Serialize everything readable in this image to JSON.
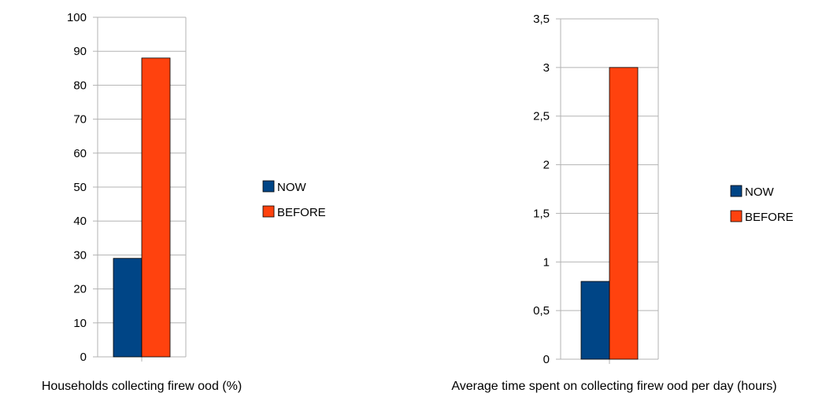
{
  "colors": {
    "now": "#004586",
    "before": "#ff420e",
    "grid": "#b3b3b3",
    "axis": "#b3b3b3"
  },
  "chart_data": [
    {
      "type": "bar",
      "categories": [
        ""
      ],
      "series": [
        {
          "name": "NOW",
          "values": [
            29
          ]
        },
        {
          "name": "BEFORE",
          "values": [
            88
          ]
        }
      ],
      "xlabel": "Households collecting firew ood (%)",
      "ylabel": "",
      "ylim": [
        0,
        100
      ],
      "yticks": [
        0,
        10,
        20,
        30,
        40,
        50,
        60,
        70,
        80,
        90,
        100
      ],
      "ytick_labels": [
        "0",
        "10",
        "20",
        "30",
        "40",
        "50",
        "60",
        "70",
        "80",
        "90",
        "100"
      ],
      "grid": "horizontal",
      "legend": "right"
    },
    {
      "type": "bar",
      "categories": [
        ""
      ],
      "series": [
        {
          "name": "NOW",
          "values": [
            0.8
          ]
        },
        {
          "name": "BEFORE",
          "values": [
            3
          ]
        }
      ],
      "xlabel": "Average time spent on collecting firew ood per day (hours)",
      "ylabel": "",
      "ylim": [
        0,
        3.5
      ],
      "yticks": [
        0,
        0.5,
        1,
        1.5,
        2,
        2.5,
        3,
        3.5
      ],
      "ytick_labels": [
        "0",
        "0,5",
        "1",
        "1,5",
        "2",
        "2,5",
        "3",
        "3,5"
      ],
      "grid": "horizontal",
      "legend": "right"
    }
  ]
}
